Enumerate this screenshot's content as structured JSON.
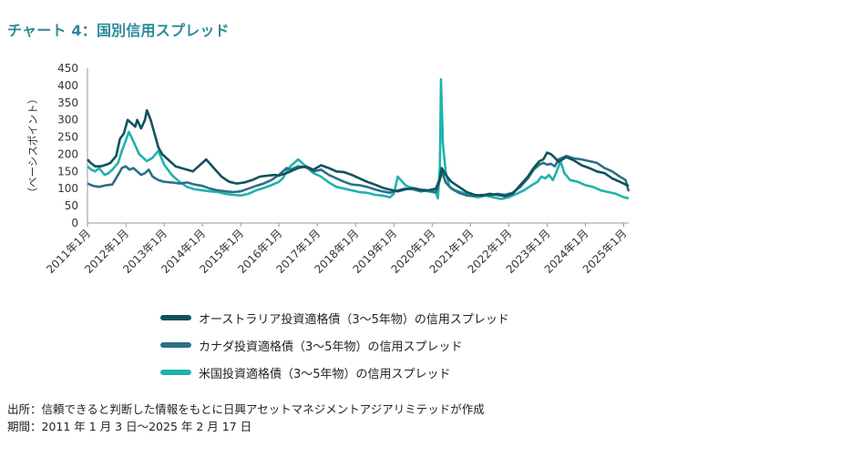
{
  "title": "チャート 4：国別信用スプレッド",
  "footer": {
    "source": "出所：信頼できると判断した情報をもとに日興アセットマネジメントアジアリミテッドが作成",
    "period": "期間：2011 年 1 月 3 日〜2025 年 2 月 17 日"
  },
  "chart_data": {
    "type": "line",
    "ylabel": "（ベーシスポイント）",
    "ylim": [
      0,
      450
    ],
    "yticks": [
      0,
      50,
      100,
      150,
      200,
      250,
      300,
      350,
      400,
      450
    ],
    "xlim": [
      2011.0,
      2025.13
    ],
    "xticks": [
      {
        "x": 2011,
        "label": "2011年1月"
      },
      {
        "x": 2012,
        "label": "2012年1月"
      },
      {
        "x": 2013,
        "label": "2013年1月"
      },
      {
        "x": 2014,
        "label": "2014年1月"
      },
      {
        "x": 2015,
        "label": "2015年1月"
      },
      {
        "x": 2016,
        "label": "2016年1月"
      },
      {
        "x": 2017,
        "label": "2017年1月"
      },
      {
        "x": 2018,
        "label": "2018年1月"
      },
      {
        "x": 2019,
        "label": "2019年1月"
      },
      {
        "x": 2020,
        "label": "2020年1月"
      },
      {
        "x": 2021,
        "label": "2021年1月"
      },
      {
        "x": 2022,
        "label": "2022年1月"
      },
      {
        "x": 2023,
        "label": "2023年1月"
      },
      {
        "x": 2024,
        "label": "2024年1月"
      },
      {
        "x": 2025,
        "label": "2025年1月"
      }
    ],
    "grid": false,
    "legend_position": "bottom",
    "series": [
      {
        "name": "オーストラリア投資適格債（3〜5年物）の信用スプレッド",
        "color": "#10525e",
        "x": [
          2011.0,
          2011.08,
          2011.2,
          2011.35,
          2011.5,
          2011.6,
          2011.75,
          2011.85,
          2011.95,
          2012.05,
          2012.15,
          2012.25,
          2012.3,
          2012.4,
          2012.5,
          2012.55,
          2012.65,
          2012.75,
          2012.85,
          2012.95,
          2013.1,
          2013.3,
          2013.45,
          2013.6,
          2013.75,
          2013.9,
          2014.1,
          2014.3,
          2014.5,
          2014.7,
          2014.9,
          2015.1,
          2015.3,
          2015.5,
          2015.7,
          2015.9,
          2016.0,
          2016.1,
          2016.2,
          2016.3,
          2016.5,
          2016.7,
          2016.9,
          2017.1,
          2017.3,
          2017.5,
          2017.7,
          2017.9,
          2018.1,
          2018.3,
          2018.5,
          2018.7,
          2018.9,
          2019.1,
          2019.3,
          2019.5,
          2019.7,
          2019.9,
          2020.1,
          2020.2,
          2020.25,
          2020.35,
          2020.5,
          2020.7,
          2020.9,
          2021.1,
          2021.3,
          2021.5,
          2021.7,
          2021.9,
          2022.1,
          2022.3,
          2022.5,
          2022.65,
          2022.8,
          2022.9,
          2023.0,
          2023.1,
          2023.2,
          2023.3,
          2023.5,
          2023.7,
          2023.9,
          2024.1,
          2024.3,
          2024.5,
          2024.7,
          2024.9,
          2025.05,
          2025.13
        ],
        "y": [
          185,
          175,
          165,
          165,
          170,
          175,
          195,
          245,
          260,
          300,
          290,
          280,
          300,
          275,
          300,
          328,
          300,
          260,
          220,
          200,
          185,
          165,
          160,
          155,
          150,
          165,
          185,
          160,
          135,
          120,
          115,
          118,
          125,
          135,
          138,
          140,
          138,
          142,
          145,
          150,
          160,
          165,
          155,
          168,
          160,
          150,
          148,
          140,
          130,
          120,
          112,
          103,
          97,
          92,
          98,
          102,
          97,
          95,
          100,
          130,
          160,
          140,
          120,
          105,
          90,
          82,
          80,
          85,
          82,
          78,
          85,
          110,
          135,
          160,
          180,
          185,
          205,
          200,
          190,
          178,
          192,
          182,
          168,
          160,
          150,
          145,
          130,
          120,
          112,
          108
        ]
      },
      {
        "name": "カナダ投資適格債（3〜5年物）の信用スプレッド",
        "color": "#2d7086",
        "x": [
          2011.0,
          2011.15,
          2011.3,
          2011.5,
          2011.65,
          2011.8,
          2011.9,
          2012.0,
          2012.1,
          2012.2,
          2012.3,
          2012.4,
          2012.5,
          2012.6,
          2012.7,
          2012.85,
          2013.0,
          2013.2,
          2013.4,
          2013.6,
          2013.8,
          2014.0,
          2014.2,
          2014.4,
          2014.6,
          2014.8,
          2015.0,
          2015.2,
          2015.4,
          2015.6,
          2015.8,
          2016.0,
          2016.1,
          2016.2,
          2016.3,
          2016.5,
          2016.7,
          2016.9,
          2017.1,
          2017.3,
          2017.5,
          2017.7,
          2017.9,
          2018.1,
          2018.3,
          2018.5,
          2018.7,
          2018.9,
          2019.1,
          2019.3,
          2019.5,
          2019.7,
          2019.9,
          2020.1,
          2020.2,
          2020.25,
          2020.35,
          2020.5,
          2020.7,
          2020.9,
          2021.1,
          2021.3,
          2021.5,
          2021.7,
          2021.9,
          2022.1,
          2022.3,
          2022.5,
          2022.65,
          2022.8,
          2022.9,
          2023.0,
          2023.1,
          2023.2,
          2023.3,
          2023.5,
          2023.7,
          2023.9,
          2024.1,
          2024.3,
          2024.5,
          2024.7,
          2024.9,
          2025.05,
          2025.13
        ],
        "y": [
          115,
          108,
          105,
          110,
          112,
          140,
          160,
          165,
          155,
          160,
          150,
          140,
          145,
          155,
          135,
          125,
          120,
          118,
          115,
          118,
          112,
          108,
          100,
          95,
          92,
          90,
          92,
          100,
          108,
          115,
          125,
          140,
          150,
          160,
          155,
          165,
          162,
          150,
          155,
          140,
          130,
          120,
          112,
          110,
          105,
          98,
          92,
          88,
          95,
          100,
          98,
          92,
          95,
          90,
          125,
          150,
          118,
          100,
          88,
          80,
          78,
          82,
          80,
          85,
          82,
          88,
          105,
          130,
          155,
          170,
          175,
          170,
          172,
          165,
          185,
          195,
          188,
          185,
          180,
          175,
          160,
          150,
          135,
          125,
          92
        ]
      },
      {
        "name": "米国投資適格債（3〜5年物）の信用スプレッド",
        "color": "#1fb3ad",
        "x": [
          2011.0,
          2011.1,
          2011.2,
          2011.3,
          2011.45,
          2011.55,
          2011.65,
          2011.8,
          2011.9,
          2012.0,
          2012.08,
          2012.15,
          2012.25,
          2012.35,
          2012.45,
          2012.55,
          2012.7,
          2012.85,
          2013.0,
          2013.2,
          2013.4,
          2013.6,
          2013.8,
          2014.0,
          2014.2,
          2014.4,
          2014.6,
          2014.8,
          2015.0,
          2015.2,
          2015.4,
          2015.6,
          2015.8,
          2016.0,
          2016.1,
          2016.2,
          2016.3,
          2016.5,
          2016.7,
          2016.9,
          2017.1,
          2017.3,
          2017.5,
          2017.7,
          2017.9,
          2018.1,
          2018.3,
          2018.5,
          2018.7,
          2018.9,
          2019.0,
          2019.1,
          2019.3,
          2019.5,
          2019.7,
          2019.9,
          2020.1,
          2020.15,
          2020.2,
          2020.23,
          2020.28,
          2020.35,
          2020.45,
          2020.6,
          2020.8,
          2021.0,
          2021.2,
          2021.4,
          2021.6,
          2021.8,
          2022.0,
          2022.2,
          2022.4,
          2022.6,
          2022.75,
          2022.85,
          2022.95,
          2023.05,
          2023.15,
          2023.25,
          2023.35,
          2023.45,
          2023.6,
          2023.8,
          2024.0,
          2024.2,
          2024.4,
          2024.6,
          2024.8,
          2025.0,
          2025.13
        ],
        "y": [
          165,
          155,
          150,
          160,
          140,
          145,
          155,
          175,
          210,
          240,
          265,
          250,
          225,
          200,
          190,
          180,
          190,
          210,
          170,
          140,
          120,
          105,
          98,
          95,
          92,
          90,
          85,
          82,
          80,
          85,
          95,
          102,
          110,
          120,
          130,
          150,
          165,
          185,
          165,
          145,
          135,
          118,
          105,
          100,
          95,
          90,
          88,
          82,
          80,
          75,
          85,
          135,
          110,
          100,
          95,
          92,
          88,
          72,
          165,
          418,
          230,
          150,
          105,
          95,
          88,
          80,
          75,
          80,
          75,
          70,
          75,
          85,
          95,
          110,
          120,
          135,
          130,
          140,
          125,
          150,
          180,
          145,
          125,
          120,
          110,
          105,
          95,
          90,
          85,
          75,
          72
        ]
      }
    ]
  }
}
